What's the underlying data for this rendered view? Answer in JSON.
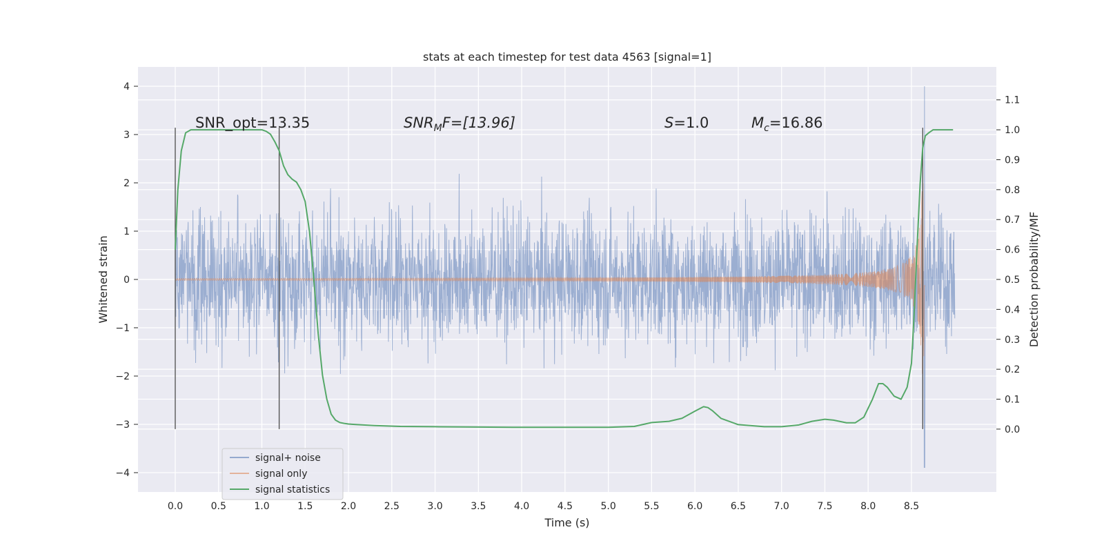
{
  "chart_data": {
    "type": "line",
    "title": "stats at each timestep for test data 4563 [signal=1]",
    "xlabel": "Time (s)",
    "ylabel": "Whitened strain",
    "y2label": "Detection probability/MF",
    "xlim": [
      -0.43,
      9.48
    ],
    "ylim": [
      -4.4,
      4.4
    ],
    "y2lim": [
      -0.21,
      1.21
    ],
    "x_ticks": [
      "0.0",
      "0.5",
      "1.0",
      "1.5",
      "2.0",
      "2.5",
      "3.0",
      "3.5",
      "4.0",
      "4.5",
      "5.0",
      "5.5",
      "6.0",
      "6.5",
      "7.0",
      "7.5",
      "8.0",
      "8.5"
    ],
    "y_ticks": [
      "4",
      "3",
      "2",
      "1",
      "0",
      "−1",
      "−2",
      "−3",
      "−4"
    ],
    "y2_ticks": [
      "1.1",
      "1.0",
      "0.9",
      "0.8",
      "0.7",
      "0.6",
      "0.5",
      "0.4",
      "0.3",
      "0.2",
      "0.1",
      "0.0"
    ],
    "grid": true,
    "legend_position": "bottom-left",
    "annotations": {
      "snr_opt": "SNR_opt=13.35",
      "snr_mf_label": "SNR",
      "snr_mf_sub": "M",
      "snr_mf_rest": "F=[13.96]",
      "s_label": "S",
      "s_value": "=1.0",
      "mc_label": "M",
      "mc_sub": "c",
      "mc_value": "=16.86"
    },
    "vertical_markers": [
      0.0,
      1.2,
      8.63
    ],
    "series": [
      {
        "name": "signal+ noise",
        "color": "#4c72b0",
        "envelope": {
          "x_start": 0.0,
          "x_end": 9.0,
          "typical_amplitude": 1.3,
          "peak_amplitude": 3.3,
          "extremes": [
            4.0,
            -3.9
          ]
        }
      },
      {
        "name": "signal only",
        "color": "#dd8452",
        "chirp": {
          "x_start": 0.0,
          "x_end": 8.66,
          "merger_time": 8.65,
          "peak_amplitude": 2.0,
          "amplitude_at_start": 0.02
        }
      },
      {
        "name": "signal statistics",
        "color": "#55a868",
        "x": [
          0.0,
          0.03,
          0.07,
          0.12,
          0.18,
          0.25,
          0.35,
          0.5,
          0.7,
          0.9,
          1.0,
          1.05,
          1.1,
          1.15,
          1.2,
          1.25,
          1.3,
          1.35,
          1.4,
          1.45,
          1.5,
          1.55,
          1.6,
          1.65,
          1.7,
          1.75,
          1.8,
          1.85,
          1.9,
          1.95,
          2.0,
          2.1,
          2.3,
          2.6,
          3.0,
          3.5,
          3.9,
          4.5,
          5.0,
          5.3,
          5.5,
          5.7,
          5.85,
          6.0,
          6.1,
          6.15,
          6.2,
          6.3,
          6.5,
          6.8,
          7.0,
          7.2,
          7.35,
          7.5,
          7.6,
          7.75,
          7.85,
          7.95,
          8.05,
          8.12,
          8.17,
          8.22,
          8.3,
          8.38,
          8.45,
          8.5,
          8.53,
          8.56,
          8.6,
          8.63,
          8.66,
          8.7,
          8.75,
          8.82,
          8.9,
          8.98
        ],
        "y": [
          0.6,
          0.8,
          0.93,
          0.99,
          1.0,
          1.0,
          1.0,
          1.0,
          1.0,
          1.0,
          1.0,
          0.995,
          0.985,
          0.96,
          0.93,
          0.88,
          0.85,
          0.835,
          0.825,
          0.8,
          0.76,
          0.66,
          0.5,
          0.32,
          0.18,
          0.1,
          0.05,
          0.03,
          0.022,
          0.019,
          0.017,
          0.015,
          0.012,
          0.009,
          0.008,
          0.007,
          0.006,
          0.006,
          0.006,
          0.009,
          0.022,
          0.026,
          0.036,
          0.06,
          0.075,
          0.072,
          0.062,
          0.036,
          0.015,
          0.008,
          0.008,
          0.014,
          0.026,
          0.033,
          0.03,
          0.021,
          0.021,
          0.04,
          0.1,
          0.152,
          0.152,
          0.14,
          0.11,
          0.1,
          0.14,
          0.22,
          0.38,
          0.58,
          0.82,
          0.94,
          0.98,
          0.99,
          1.0,
          1.0,
          1.0,
          1.0
        ]
      }
    ]
  }
}
